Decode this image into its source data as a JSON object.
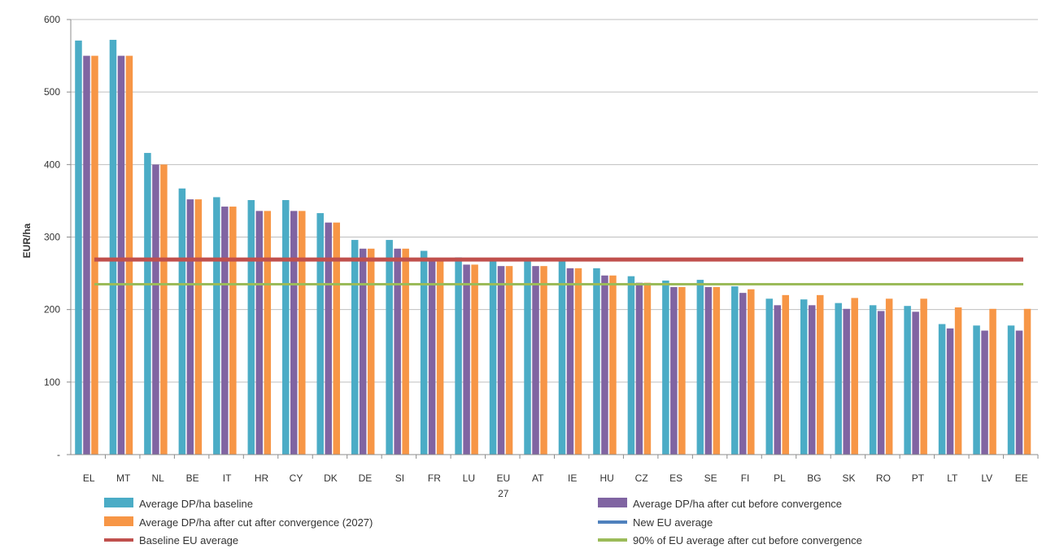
{
  "chart_data": {
    "type": "bar",
    "ylabel": "EUR/ha",
    "ylim": [
      0,
      600
    ],
    "yticks": [
      {
        "value": 0,
        "label": "-"
      },
      {
        "value": 100,
        "label": "100"
      },
      {
        "value": 200,
        "label": "200"
      },
      {
        "value": 300,
        "label": "300"
      },
      {
        "value": 400,
        "label": "400"
      },
      {
        "value": 500,
        "label": "500"
      },
      {
        "value": 600,
        "label": "600"
      }
    ],
    "grid": true,
    "legend_position": "bottom",
    "categories": [
      "EL",
      "MT",
      "NL",
      "BE",
      "IT",
      "HR",
      "CY",
      "DK",
      "DE",
      "SI",
      "FR",
      "LU",
      "EU 27",
      "AT",
      "IE",
      "HU",
      "CZ",
      "ES",
      "SE",
      "FI",
      "PL",
      "BG",
      "SK",
      "RO",
      "PT",
      "LT",
      "LV",
      "EE"
    ],
    "series": [
      {
        "name": "Average DP/ha baseline",
        "color": "#4bacc6",
        "values": [
          571,
          572,
          416,
          367,
          355,
          351,
          351,
          333,
          296,
          296,
          281,
          272,
          270,
          270,
          268,
          257,
          246,
          240,
          241,
          232,
          215,
          214,
          209,
          206,
          205,
          180,
          178,
          178
        ]
      },
      {
        "name": "Average DP/ha after cut before convergence",
        "color": "#8064a2",
        "values": [
          550,
          550,
          400,
          352,
          342,
          336,
          336,
          320,
          284,
          284,
          270,
          262,
          260,
          260,
          257,
          247,
          237,
          231,
          231,
          223,
          206,
          206,
          201,
          198,
          197,
          174,
          171,
          171
        ]
      },
      {
        "name": "Average DP/ha after cut after convergence (2027)",
        "color": "#f79646",
        "values": [
          550,
          550,
          400,
          352,
          342,
          336,
          336,
          320,
          284,
          284,
          270,
          262,
          260,
          260,
          257,
          247,
          237,
          231,
          231,
          228,
          220,
          220,
          216,
          215,
          215,
          203,
          201,
          201
        ]
      }
    ],
    "reference_lines": [
      {
        "name": "New EU average",
        "value": 268,
        "color": "#4f81bd"
      },
      {
        "name": "Baseline EU average",
        "value": 269,
        "color": "#c0504d"
      },
      {
        "name": "90% of EU average after cut before convergence",
        "value": 235,
        "color": "#9bbb59"
      }
    ],
    "legend_order": [
      {
        "label": "Average DP/ha baseline",
        "color": "#4bacc6",
        "kind": "bar"
      },
      {
        "label": "Average DP/ha after cut before convergence",
        "color": "#8064a2",
        "kind": "bar"
      },
      {
        "label": "Average DP/ha after cut after convergence (2027)",
        "color": "#f79646",
        "kind": "bar"
      },
      {
        "label": "New EU average",
        "color": "#4f81bd",
        "kind": "line"
      },
      {
        "label": "Baseline EU average",
        "color": "#c0504d",
        "kind": "line"
      },
      {
        "label": "90% of EU average after cut before convergence",
        "color": "#9bbb59",
        "kind": "line"
      }
    ]
  }
}
